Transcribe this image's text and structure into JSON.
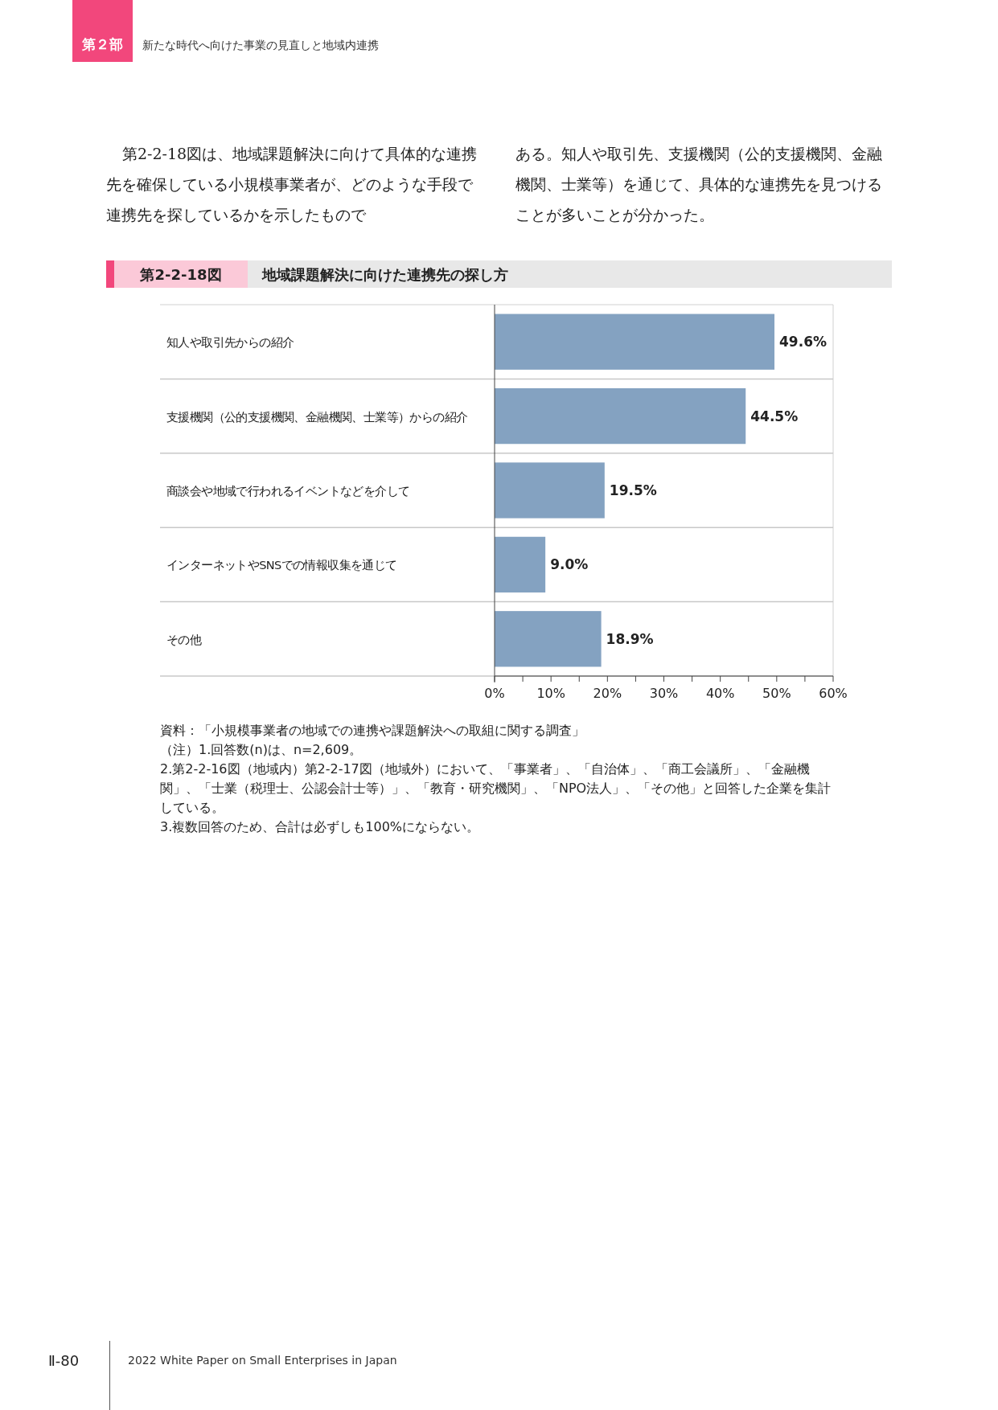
{
  "chart_data": {
    "type": "bar",
    "orientation": "horizontal",
    "title": "地域課題解決に向けた連携先の探し方",
    "categories": [
      "知人や取引先からの紹介",
      "支援機関（公的支援機関、金融機関、士業等）からの紹介",
      "商談会や地域で行われるイベントなどを介して",
      "インターネットやSNSでの情報収集を通じて",
      "その他"
    ],
    "values": [
      49.6,
      44.5,
      19.5,
      9.0,
      18.9
    ],
    "value_labels": [
      "49.6%",
      "44.5%",
      "19.5%",
      "9.0%",
      "18.9%"
    ],
    "color": "#84a2c1",
    "xlim": [
      0,
      60
    ],
    "xticks": [
      {
        "value": 0,
        "label": "0%"
      },
      {
        "value": 5,
        "label": null
      },
      {
        "value": 10,
        "label": "10%"
      },
      {
        "value": 15,
        "label": null
      },
      {
        "value": 20,
        "label": "20%"
      },
      {
        "value": 25,
        "label": null
      },
      {
        "value": 30,
        "label": "30%"
      },
      {
        "value": 35,
        "label": null
      },
      {
        "value": 40,
        "label": "40%"
      },
      {
        "value": 45,
        "label": null
      },
      {
        "value": 50,
        "label": "50%"
      },
      {
        "value": 55,
        "label": null
      },
      {
        "value": 60,
        "label": "60%"
      }
    ],
    "grid": false,
    "annotations": [
      "第２部",
      "新たな時代へ向けた事業の見直しと地域内連携",
      "第2-2-18図は、地域課題解決に向けて具体的な連携先を確保している小規模事業者が、どのような手段で連携先を探しているかを示したもので",
      "ある。知人や取引先、支援機関（公的支援機関、金融機関、士業等）を通じて、具体的な連携先を見つけることが多いことが分かった。",
      "第2-2-18図",
      "資料：「小規模事業者の地域での連携や課題解決への取組に関する調査」",
      "（注）1.回答数(n)は、n=2,609。",
      "2.第2-2-16図（地域内）第2-2-17図（地域外）において、「事業者」、「自治体」、「商工会議所」、「金融機関」、「士業（税理士、公認会計士等）」、「教育・研究機関」、「NPO法人」、「その他」と回答した企業を集計している。",
      "3.複数回答のため、合計は必ずしも100%にならない。",
      "Ⅱ-80",
      "2022 White Paper on Small Enterprises in Japan"
    ]
  }
}
